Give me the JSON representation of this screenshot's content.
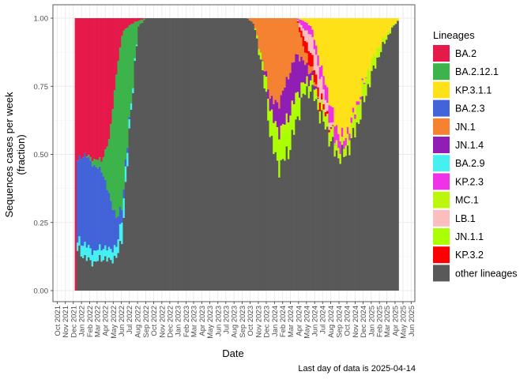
{
  "chart_data": {
    "type": "area",
    "xlabel": "Date",
    "ylabel": [
      "Sequences cases per week",
      "(fraction)"
    ],
    "ylim": [
      0,
      1
    ],
    "yticks": [
      "0.00",
      "0.25",
      "0.50",
      "0.75",
      "1.00"
    ],
    "xlim": [
      "2021-09-15",
      "2025-06-15"
    ],
    "xticks": [
      "Oct 2021",
      "Nov 2021",
      "Dec 2021",
      "Jan 2022",
      "Feb 2022",
      "Mar 2022",
      "Apr 2022",
      "May 2022",
      "Jun 2022",
      "Jul 2022",
      "Aug 2022",
      "Sep 2022",
      "Oct 2022",
      "Nov 2022",
      "Dec 2022",
      "Jan 2023",
      "Feb 2023",
      "Mar 2023",
      "Apr 2023",
      "May 2023",
      "Jun 2023",
      "Jul 2023",
      "Aug 2023",
      "Sep 2023",
      "Oct 2023",
      "Nov 2023",
      "Dec 2023",
      "Jan 2024",
      "Feb 2024",
      "Mar 2024",
      "Apr 2024",
      "May 2024",
      "Jun 2024",
      "Jul 2024",
      "Aug 2024",
      "Sep 2024",
      "Oct 2024",
      "Nov 2024",
      "Dec 2024",
      "Jan 2025",
      "Feb 2025",
      "Mar 2025",
      "Apr 2025",
      "May 2025",
      "Jun 2025"
    ],
    "grid": true,
    "legend_placement": "right",
    "legend_title": "Lineages",
    "series": [
      {
        "name": "BA.2",
        "color": "#E6194B"
      },
      {
        "name": "BA.2.12.1",
        "color": "#3CB44B"
      },
      {
        "name": "KP.3.1.1",
        "color": "#FFE119"
      },
      {
        "name": "BA.2.3",
        "color": "#4363D8"
      },
      {
        "name": "JN.1",
        "color": "#F58231"
      },
      {
        "name": "JN.1.4",
        "color": "#911EB4"
      },
      {
        "name": "BA.2.9",
        "color": "#46F0F0"
      },
      {
        "name": "KP.2.3",
        "color": "#F032E6"
      },
      {
        "name": "MC.1",
        "color": "#BCF60C"
      },
      {
        "name": "LB.1",
        "color": "#FABEBE"
      },
      {
        "name": "JN.1.1",
        "color": "#AAFF00"
      },
      {
        "name": "KP.3.2",
        "color": "#FF0000"
      },
      {
        "name": "other lineages",
        "color": "#595959"
      }
    ],
    "stack_order": [
      "other lineages",
      "BA.2.9",
      "BA.2.3",
      "BA.2.12.1",
      "BA.2",
      "JN.1.1",
      "MC.1",
      "JN.1.4",
      "JN.1",
      "KP.3.2",
      "LB.1",
      "KP.2.3",
      "KP.3.1.1"
    ],
    "keyframes": [
      {
        "date": "2021-12-10",
        "other lineages": 0.0,
        "BA.2": 1.0
      },
      {
        "date": "2021-12-17",
        "other lineages": 0.15,
        "BA.2.9": 0.03,
        "BA.2.3": 0.3,
        "BA.2.12.1": 0.0,
        "BA.2": 0.52
      },
      {
        "date": "2022-01-15",
        "other lineages": 0.12,
        "BA.2.9": 0.05,
        "BA.2.3": 0.33,
        "BA.2.12.1": 0.0,
        "BA.2": 0.5
      },
      {
        "date": "2022-02-15",
        "other lineages": 0.1,
        "BA.2.9": 0.04,
        "BA.2.3": 0.32,
        "BA.2.12.1": 0.02,
        "BA.2": 0.52
      },
      {
        "date": "2022-03-20",
        "other lineages": 0.12,
        "BA.2.9": 0.04,
        "BA.2.3": 0.28,
        "BA.2.12.1": 0.04,
        "BA.2": 0.52
      },
      {
        "date": "2022-04-15",
        "other lineages": 0.11,
        "BA.2.9": 0.04,
        "BA.2.3": 0.2,
        "BA.2.12.1": 0.2,
        "BA.2": 0.45
      },
      {
        "date": "2022-05-15",
        "other lineages": 0.12,
        "BA.2.9": 0.04,
        "BA.2.3": 0.1,
        "BA.2.12.1": 0.55,
        "BA.2": 0.19
      },
      {
        "date": "2022-06-05",
        "other lineages": 0.2,
        "BA.2.9": 0.08,
        "BA.2.3": 0.04,
        "BA.2.12.1": 0.63,
        "BA.2": 0.05
      },
      {
        "date": "2022-07-10",
        "other lineages": 0.7,
        "BA.2.9": 0.02,
        "BA.2.3": 0.0,
        "BA.2.12.1": 0.26,
        "BA.2": 0.02
      },
      {
        "date": "2022-08-05",
        "other lineages": 0.97,
        "BA.2.12.1": 0.02,
        "BA.2": 0.01
      },
      {
        "date": "2022-09-01",
        "other lineages": 1.0
      },
      {
        "date": "2023-09-20",
        "other lineages": 1.0
      },
      {
        "date": "2023-10-15",
        "other lineages": 0.98,
        "JN.1": 0.02
      },
      {
        "date": "2023-11-15",
        "other lineages": 0.82,
        "JN.1.1": 0.03,
        "JN.1.4": 0.0,
        "JN.1": 0.15
      },
      {
        "date": "2023-12-20",
        "other lineages": 0.55,
        "JN.1.1": 0.08,
        "MC.1": 0.02,
        "JN.1.4": 0.05,
        "JN.1": 0.3
      },
      {
        "date": "2024-01-15",
        "other lineages": 0.45,
        "JN.1.1": 0.1,
        "MC.1": 0.03,
        "JN.1.4": 0.1,
        "JN.1": 0.32
      },
      {
        "date": "2024-02-20",
        "other lineages": 0.5,
        "JN.1.1": 0.1,
        "MC.1": 0.03,
        "JN.1.4": 0.15,
        "JN.1": 0.22
      },
      {
        "date": "2024-03-25",
        "other lineages": 0.62,
        "JN.1.1": 0.08,
        "MC.1": 0.02,
        "JN.1.4": 0.15,
        "JN.1": 0.13
      },
      {
        "date": "2024-04-20",
        "other lineages": 0.72,
        "JN.1.1": 0.03,
        "MC.1": 0.01,
        "JN.1.4": 0.08,
        "JN.1": 0.05,
        "KP.3.2": 0.04,
        "LB.1": 0.03,
        "KP.2.3": 0.03,
        "KP.3.1.1": 0.01
      },
      {
        "date": "2024-05-20",
        "other lineages": 0.74,
        "JN.1.1": 0.02,
        "MC.1": 0.02,
        "JN.1.4": 0.02,
        "JN.1": 0.02,
        "KP.3.2": 0.05,
        "LB.1": 0.07,
        "KP.2.3": 0.03,
        "KP.3.1.1": 0.03
      },
      {
        "date": "2024-06-20",
        "other lineages": 0.65,
        "MC.1": 0.04,
        "KP.3.2": 0.03,
        "LB.1": 0.08,
        "KP.2.3": 0.04,
        "KP.3.1.1": 0.16
      },
      {
        "date": "2024-07-20",
        "other lineages": 0.58,
        "MC.1": 0.05,
        "KP.3.2": 0.01,
        "LB.1": 0.03,
        "KP.2.3": 0.06,
        "KP.3.1.1": 0.27
      },
      {
        "date": "2024-08-20",
        "other lineages": 0.5,
        "MC.1": 0.04,
        "KP.2.3": 0.06,
        "KP.3.1.1": 0.4
      },
      {
        "date": "2024-09-20",
        "other lineages": 0.49,
        "MC.1": 0.03,
        "KP.2.3": 0.03,
        "KP.3.1.1": 0.45
      },
      {
        "date": "2024-10-20",
        "other lineages": 0.55,
        "MC.1": 0.06,
        "KP.2.3": 0.02,
        "KP.3.1.1": 0.37
      },
      {
        "date": "2024-11-20",
        "other lineages": 0.64,
        "MC.1": 0.07,
        "KP.2.3": 0.01,
        "KP.3.1.1": 0.28
      },
      {
        "date": "2024-12-20",
        "other lineages": 0.75,
        "MC.1": 0.06,
        "KP.3.1.1": 0.19
      },
      {
        "date": "2025-01-20",
        "other lineages": 0.84,
        "MC.1": 0.04,
        "KP.3.1.1": 0.12
      },
      {
        "date": "2025-02-20",
        "other lineages": 0.91,
        "MC.1": 0.02,
        "KP.3.1.1": 0.07
      },
      {
        "date": "2025-03-20",
        "other lineages": 0.96,
        "MC.1": 0.01,
        "KP.3.1.1": 0.03
      },
      {
        "date": "2025-04-10",
        "other lineages": 0.99,
        "KP.3.1.1": 0.01
      }
    ],
    "data_range": [
      "2021-12-10",
      "2025-04-14"
    ]
  },
  "caption": "Last day of data is 2025-04-14"
}
